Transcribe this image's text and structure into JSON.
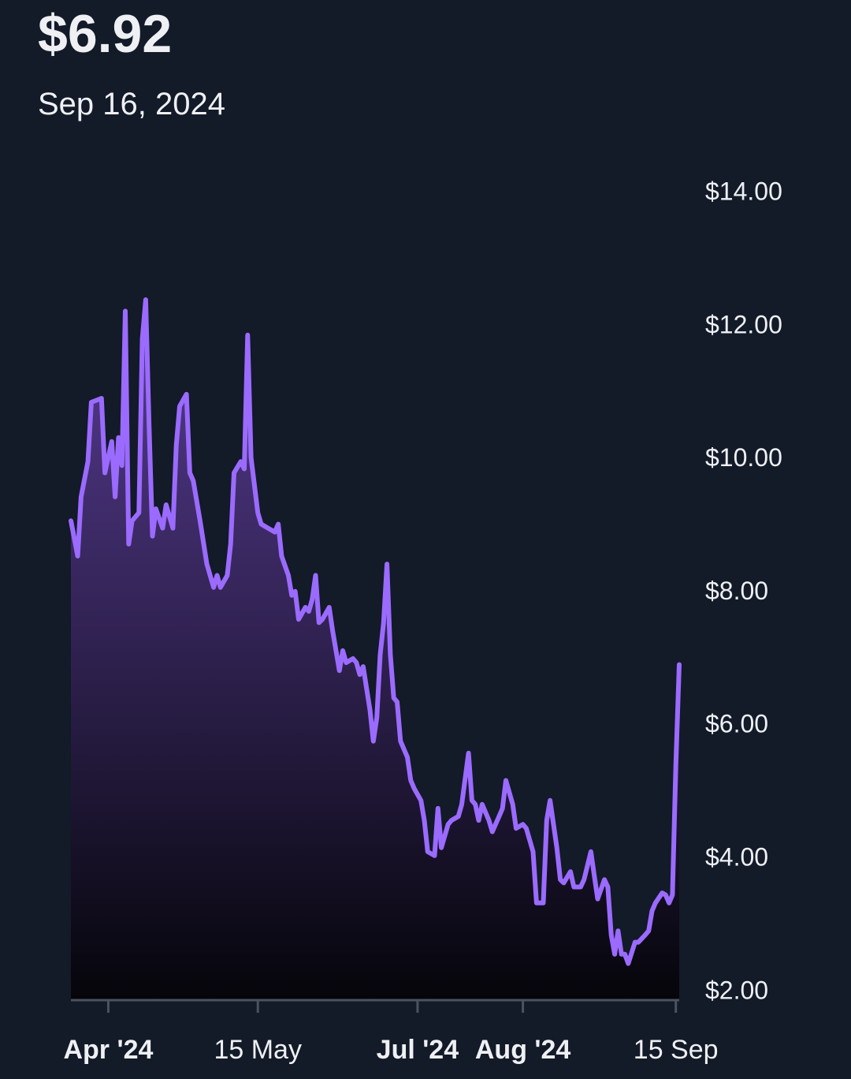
{
  "chart_data": {
    "type": "area",
    "title": "$6.92",
    "subtitle": "Sep 16, 2024",
    "x": [
      "2024-03-21",
      "2024-03-23",
      "2024-03-24",
      "2024-03-26",
      "2024-03-27",
      "2024-03-30",
      "2024-03-31",
      "2024-04-02",
      "2024-04-03",
      "2024-04-04",
      "2024-04-05",
      "2024-04-06",
      "2024-04-07",
      "2024-04-08",
      "2024-04-10",
      "2024-04-11",
      "2024-04-12",
      "2024-04-13",
      "2024-04-14",
      "2024-04-15",
      "2024-04-17",
      "2024-04-18",
      "2024-04-20",
      "2024-04-21",
      "2024-04-22",
      "2024-04-24",
      "2024-04-25",
      "2024-04-26",
      "2024-04-28",
      "2024-04-30",
      "2024-05-02",
      "2024-05-03",
      "2024-05-04",
      "2024-05-06",
      "2024-05-07",
      "2024-05-08",
      "2024-05-10",
      "2024-05-11",
      "2024-05-12",
      "2024-05-13",
      "2024-05-15",
      "2024-05-16",
      "2024-05-18",
      "2024-05-20",
      "2024-05-21",
      "2024-05-22",
      "2024-05-24",
      "2024-05-25",
      "2024-05-26",
      "2024-05-27",
      "2024-05-29",
      "2024-05-30",
      "2024-05-31",
      "2024-06-01",
      "2024-06-02",
      "2024-06-03",
      "2024-06-05",
      "2024-06-06",
      "2024-06-08",
      "2024-06-09",
      "2024-06-10",
      "2024-06-12",
      "2024-06-13",
      "2024-06-14",
      "2024-06-15",
      "2024-06-17",
      "2024-06-18",
      "2024-06-19",
      "2024-06-20",
      "2024-06-21",
      "2024-06-22",
      "2024-06-23",
      "2024-06-24",
      "2024-06-25",
      "2024-06-26",
      "2024-06-28",
      "2024-06-29",
      "2024-06-30",
      "2024-07-02",
      "2024-07-03",
      "2024-07-04",
      "2024-07-06",
      "2024-07-07",
      "2024-07-08",
      "2024-07-10",
      "2024-07-11",
      "2024-07-13",
      "2024-07-14",
      "2024-07-16",
      "2024-07-17",
      "2024-07-18",
      "2024-07-19",
      "2024-07-20",
      "2024-07-22",
      "2024-07-23",
      "2024-07-25",
      "2024-07-26",
      "2024-07-27",
      "2024-07-29",
      "2024-07-30",
      "2024-08-01",
      "2024-08-02",
      "2024-08-04",
      "2024-08-05",
      "2024-08-07",
      "2024-08-08",
      "2024-08-09",
      "2024-08-11",
      "2024-08-12",
      "2024-08-13",
      "2024-08-15",
      "2024-08-16",
      "2024-08-18",
      "2024-08-19",
      "2024-08-21",
      "2024-08-22",
      "2024-08-23",
      "2024-08-25",
      "2024-08-26",
      "2024-08-27",
      "2024-08-28",
      "2024-08-29",
      "2024-08-30",
      "2024-08-31",
      "2024-09-01",
      "2024-09-03",
      "2024-09-04",
      "2024-09-06",
      "2024-09-07",
      "2024-09-08",
      "2024-09-09",
      "2024-09-11",
      "2024-09-12",
      "2024-09-13",
      "2024-09-14",
      "2024-09-15",
      "2024-09-16"
    ],
    "series": [
      {
        "color": "#9b6bff",
        "values": [
          9.08,
          8.55,
          9.44,
          9.97,
          10.86,
          10.92,
          9.8,
          10.27,
          9.44,
          10.33,
          9.91,
          12.23,
          8.73,
          9.08,
          9.2,
          11.81,
          12.4,
          10.51,
          8.85,
          9.26,
          8.97,
          9.32,
          8.97,
          10.21,
          10.8,
          10.98,
          9.8,
          9.68,
          9.08,
          8.43,
          8.08,
          8.26,
          8.08,
          8.26,
          8.73,
          9.8,
          9.97,
          9.86,
          11.87,
          10.03,
          9.2,
          9.03,
          8.97,
          8.91,
          9.03,
          8.55,
          8.26,
          7.96,
          8.02,
          7.6,
          7.78,
          7.72,
          7.9,
          8.26,
          7.55,
          7.6,
          7.78,
          7.43,
          6.83,
          7.13,
          6.95,
          7.01,
          6.95,
          6.77,
          6.89,
          6.24,
          5.77,
          6.12,
          7.07,
          7.55,
          8.43,
          7.07,
          6.42,
          6.36,
          5.77,
          5.53,
          5.18,
          5.06,
          4.88,
          4.58,
          4.11,
          4.05,
          4.76,
          4.17,
          4.52,
          4.58,
          4.64,
          4.82,
          5.59,
          4.88,
          4.82,
          4.58,
          4.82,
          4.58,
          4.41,
          4.64,
          4.76,
          5.18,
          4.82,
          4.46,
          4.52,
          4.46,
          4.11,
          3.34,
          3.34,
          4.58,
          4.88,
          4.17,
          3.69,
          3.64,
          3.81,
          3.58,
          3.58,
          3.69,
          4.11,
          3.75,
          3.4,
          3.69,
          3.58,
          2.86,
          2.57,
          2.92,
          2.57,
          2.57,
          2.43,
          2.75,
          2.75,
          2.86,
          2.92,
          3.22,
          3.34,
          3.49,
          3.46,
          3.34,
          3.46,
          5.41,
          6.92
        ]
      }
    ],
    "xlim": [
      "2024-03-21",
      "2024-09-16"
    ],
    "xticks": [
      {
        "value": "2024-04-01",
        "label": "Apr '24",
        "bold": true
      },
      {
        "value": "2024-05-15",
        "label": "15 May"
      },
      {
        "value": "2024-07-01",
        "label": "Jul '24",
        "bold": true
      },
      {
        "value": "2024-08-01",
        "label": "Aug '24",
        "bold": true
      },
      {
        "value": "2024-09-15",
        "label": "15 Sep"
      }
    ],
    "ylim": [
      1.88,
      14
    ],
    "yticks": [
      {
        "value": 2,
        "label": "$2.00"
      },
      {
        "value": 4,
        "label": "$4.00"
      },
      {
        "value": 6,
        "label": "$6.00"
      },
      {
        "value": 8,
        "label": "$8.00"
      },
      {
        "value": 10,
        "label": "$10.00"
      },
      {
        "value": 12,
        "label": "$12.00"
      },
      {
        "value": 14,
        "label": "$14.00"
      }
    ]
  }
}
